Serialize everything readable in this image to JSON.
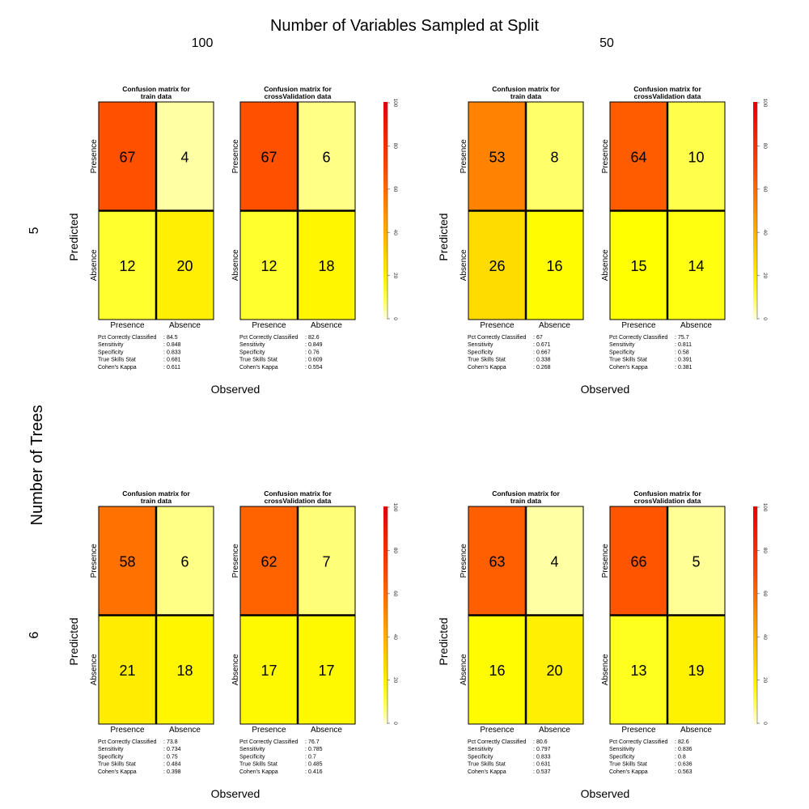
{
  "figure": {
    "title": "Number of Variables Sampled at Split",
    "column_headers": [
      "100",
      "50"
    ],
    "row_axis_title": "Number of Trees",
    "row_headers": [
      "5",
      "6"
    ],
    "predicted_label": "Predicted",
    "observed_label": "Observed",
    "class_labels": [
      "Presence",
      "Absence"
    ],
    "stat_labels": [
      "Pct Correctly Classified",
      "Sensitivity",
      "Specificity",
      "True Skills Stat",
      "Cohen's Kappa"
    ],
    "colorbar_ticks": [
      0,
      20,
      40,
      60,
      80,
      100
    ]
  },
  "chart_data": [
    {
      "type": "heatmap",
      "row": "5",
      "column": "100",
      "panels": [
        {
          "title": "Confusion matrix for\ntrain data",
          "matrix": [
            [
              67,
              4
            ],
            [
              12,
              20
            ]
          ],
          "stats": [
            "84.5",
            "0.848",
            "0.833",
            "0.681",
            "0.611"
          ]
        },
        {
          "title": "Confusion matrix for\ncrossValidation data",
          "matrix": [
            [
              67,
              6
            ],
            [
              12,
              18
            ]
          ],
          "stats": [
            "82.6",
            "0.849",
            "0.76",
            "0.609",
            "0.554"
          ]
        }
      ]
    },
    {
      "type": "heatmap",
      "row": "5",
      "column": "50",
      "panels": [
        {
          "title": "Confusion matrix for\ntrain data",
          "matrix": [
            [
              53,
              8
            ],
            [
              26,
              16
            ]
          ],
          "stats": [
            "67",
            "0.671",
            "0.667",
            "0.338",
            "0.268"
          ]
        },
        {
          "title": "Confusion matrix for\ncrossValidation data",
          "matrix": [
            [
              64,
              10
            ],
            [
              15,
              14
            ]
          ],
          "stats": [
            "75.7",
            "0.811",
            "0.58",
            "0.391",
            "0.381"
          ]
        }
      ]
    },
    {
      "type": "heatmap",
      "row": "6",
      "column": "100",
      "panels": [
        {
          "title": "Confusion matrix for\ntrain data",
          "matrix": [
            [
              58,
              6
            ],
            [
              21,
              18
            ]
          ],
          "stats": [
            "73.8",
            "0.734",
            "0.75",
            "0.484",
            "0.398"
          ]
        },
        {
          "title": "Confusion matrix for\ncrossValidation data",
          "matrix": [
            [
              62,
              7
            ],
            [
              17,
              17
            ]
          ],
          "stats": [
            "76.7",
            "0.785",
            "0.7",
            "0.485",
            "0.416"
          ]
        }
      ]
    },
    {
      "type": "heatmap",
      "row": "6",
      "column": "50",
      "panels": [
        {
          "title": "Confusion matrix for\ntrain data",
          "matrix": [
            [
              63,
              4
            ],
            [
              16,
              20
            ]
          ],
          "stats": [
            "80.6",
            "0.797",
            "0.833",
            "0.631",
            "0.537"
          ]
        },
        {
          "title": "Confusion matrix for\ncrossValidation data",
          "matrix": [
            [
              66,
              5
            ],
            [
              13,
              19
            ]
          ],
          "stats": [
            "82.6",
            "0.836",
            "0.8",
            "0.636",
            "0.563"
          ]
        }
      ]
    }
  ]
}
